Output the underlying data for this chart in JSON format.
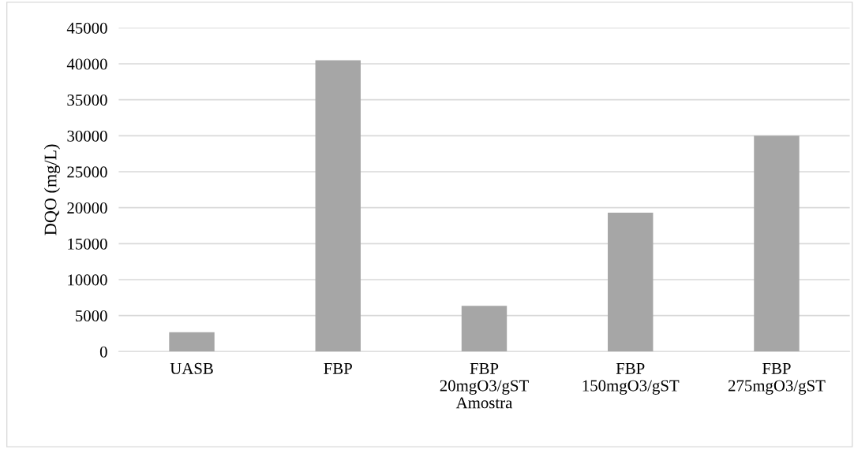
{
  "chart_data": {
    "type": "bar",
    "xlabel": "Amostra",
    "ylabel": "DQO (mg/L)",
    "categories": [
      "UASB",
      "FBP",
      "FBP\n20mgO3/gST",
      "FBP\n150mgO3/gST",
      "FBP\n275mgO3/gST"
    ],
    "values": [
      2700,
      40500,
      6350,
      19300,
      30000
    ],
    "color": "#a6a6a6",
    "ylim": [
      0,
      45000
    ],
    "yticks": [
      0,
      5000,
      10000,
      15000,
      20000,
      25000,
      30000,
      35000,
      40000,
      45000
    ],
    "grid": "y"
  }
}
